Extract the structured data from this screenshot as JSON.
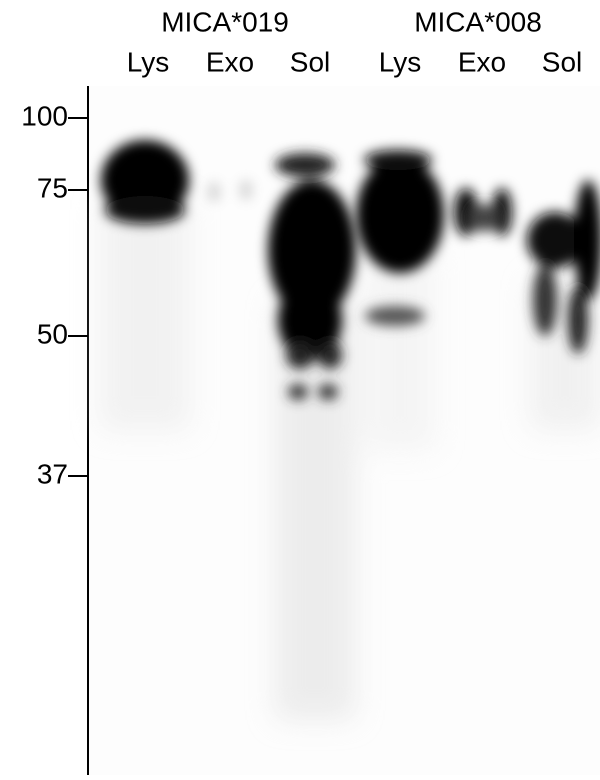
{
  "groups": [
    {
      "label": "MICA*019",
      "lanes": [
        "Lys",
        "Exo",
        "Sol"
      ]
    },
    {
      "label": "MICA*008",
      "lanes": [
        "Lys",
        "Exo",
        "Sol"
      ]
    }
  ],
  "markers": [
    "100",
    "75",
    "50",
    "37"
  ]
}
